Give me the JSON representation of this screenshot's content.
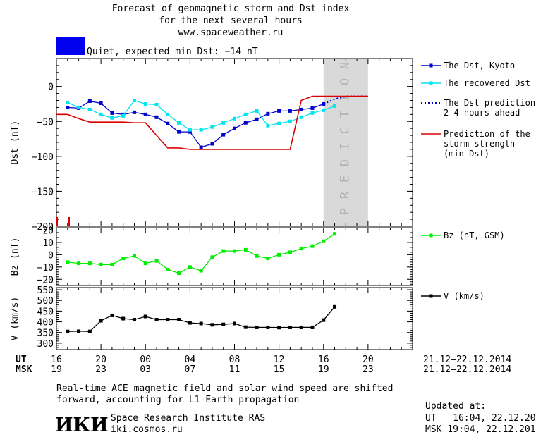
{
  "header": {
    "title_line1": "Forecast of geomagnetic storm and Dst index",
    "title_line2": "for the next several hours",
    "url": "www.spaceweather.ru",
    "status_text": "Quiet, expected min Dst: −14 nT",
    "status_color": "#0000ee"
  },
  "footer": {
    "note_line1": "Real-time ACE magnetic field and solar wind speed are shifted",
    "note_line2": "forward, accounting for L1-Earth propagation",
    "logo_text": "ИКИ",
    "institute": "Space Research Institute RAS",
    "site": "iki.cosmos.ru",
    "updated_label": "Updated at:",
    "updated_ut": "UT   16:04, 22.12.2014",
    "updated_msk": "MSK 19:04, 22.12.2014"
  },
  "time_axis": {
    "ut_label": "UT",
    "msk_label": "MSK",
    "ut_ticks": [
      "16",
      "20",
      "00",
      "04",
      "08",
      "12",
      "16",
      "20"
    ],
    "msk_ticks": [
      "19",
      "23",
      "03",
      "07",
      "11",
      "15",
      "19",
      "23"
    ],
    "ut_date_range": "21.12–22.12.2014",
    "msk_date_range": "21.12–22.12.2014"
  },
  "chart_data": [
    {
      "type": "line",
      "ylabel": "Dst (nT)",
      "ylim": [
        -200,
        40
      ],
      "yticks": [
        0,
        -50,
        -100,
        -150,
        -200
      ],
      "xlim": [
        16,
        48
      ],
      "x_unit": "hours UT from 00:00 21.12.2014",
      "prediction_band": {
        "x_start": 40,
        "x_end": 44,
        "label": "PREDICTION",
        "color": "#d9d9d9"
      },
      "series": [
        {
          "name": "The Dst, Kyoto",
          "color": "#0000cc",
          "marker": "square",
          "x": [
            17,
            18,
            19,
            20,
            21,
            22,
            23,
            24,
            25,
            26,
            27,
            28,
            29,
            30,
            31,
            32,
            33,
            34,
            35,
            36,
            37,
            38,
            39,
            40
          ],
          "y": [
            -30,
            -31,
            -21,
            -24,
            -38,
            -40,
            -37,
            -40,
            -44,
            -53,
            -65,
            -65,
            -87,
            -82,
            -69,
            -60,
            -52,
            -47,
            -39,
            -35,
            -35,
            -33,
            -31,
            -25
          ]
        },
        {
          "name": "The recovered Dst",
          "color": "#00e5ee",
          "marker": "square",
          "x": [
            17,
            18,
            19,
            20,
            21,
            22,
            23,
            24,
            25,
            26,
            27,
            28,
            29,
            30,
            31,
            32,
            33,
            34,
            35,
            36,
            37,
            38,
            39,
            40,
            41
          ],
          "y": [
            -23,
            -30,
            -33,
            -40,
            -45,
            -42,
            -20,
            -25,
            -26,
            -40,
            -52,
            -62,
            -62,
            -58,
            -52,
            -46,
            -40,
            -35,
            -56,
            -53,
            -50,
            -44,
            -38,
            -34,
            -28
          ]
        },
        {
          "name": "The Dst prediction\n2–4 hours ahead",
          "color": "#0000cc",
          "style": "dotted",
          "x": [
            40,
            41,
            42,
            43,
            44
          ],
          "y": [
            -25,
            -18,
            -14,
            -14,
            -14
          ]
        },
        {
          "name": "Prediction of the\nstorm strength\n(min Dst)",
          "color": "#dd0000",
          "style": "step",
          "x": [
            16,
            17,
            18,
            19,
            20,
            21,
            22,
            23,
            24,
            25,
            26,
            27,
            28,
            29,
            30,
            31,
            32,
            33,
            34,
            35,
            36,
            37,
            38,
            39,
            40,
            41,
            42,
            43,
            44
          ],
          "y": [
            -40,
            -40,
            -46,
            -51,
            -51,
            -51,
            -51,
            -52,
            -52,
            -70,
            -88,
            -88,
            -90,
            -90,
            -90,
            -90,
            -90,
            -90,
            -90,
            -90,
            -90,
            -90,
            -20,
            -14,
            -14,
            -14,
            -14,
            -14,
            -14
          ]
        }
      ]
    },
    {
      "type": "line",
      "ylabel": "Bz (nT)",
      "ylim": [
        -25,
        22
      ],
      "yticks": [
        20,
        10,
        0,
        -10,
        -20
      ],
      "xlim": [
        16,
        48
      ],
      "series": [
        {
          "name": "Bz (nT, GSM)",
          "color": "#00ee00",
          "marker": "square",
          "x": [
            17,
            18,
            19,
            20,
            21,
            22,
            23,
            24,
            25,
            26,
            27,
            28,
            29,
            30,
            31,
            32,
            33,
            34,
            35,
            36,
            37,
            38,
            39,
            40,
            41
          ],
          "y": [
            -6,
            -7,
            -7,
            -8,
            -8,
            -3,
            -1,
            -7,
            -5,
            -12,
            -15,
            -10,
            -13,
            -2,
            3,
            3,
            4,
            -1,
            -3,
            0,
            2,
            5,
            7,
            11,
            17
          ]
        }
      ]
    },
    {
      "type": "line",
      "ylabel": "V (km/s)",
      "ylim": [
        270,
        560
      ],
      "yticks": [
        300,
        350,
        400,
        450,
        500,
        550
      ],
      "xlim": [
        16,
        48
      ],
      "series": [
        {
          "name": "V (km/s)",
          "color": "#000000",
          "marker": "square",
          "x": [
            17,
            18,
            19,
            20,
            21,
            22,
            23,
            24,
            25,
            26,
            27,
            28,
            29,
            30,
            31,
            32,
            33,
            34,
            35,
            36,
            37,
            38,
            39,
            40,
            41
          ],
          "y": [
            355,
            356,
            355,
            405,
            430,
            415,
            410,
            425,
            410,
            410,
            410,
            395,
            392,
            386,
            388,
            392,
            375,
            374,
            374,
            373,
            374,
            374,
            374,
            408,
            470
          ]
        }
      ]
    }
  ]
}
